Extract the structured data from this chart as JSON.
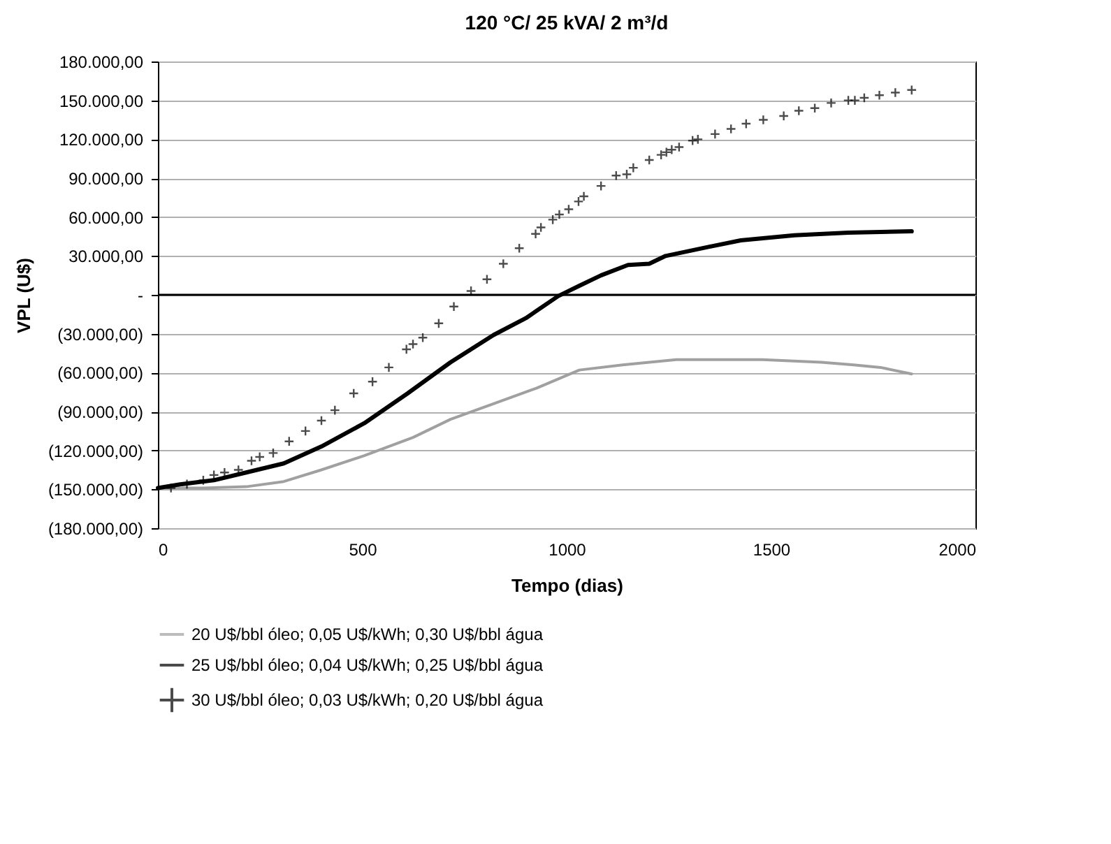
{
  "chart_data": {
    "type": "line",
    "title": "120 °C/ 25 kVA/ 2 m³/d",
    "xlabel": "Tempo (dias)",
    "ylabel": "VPL (U$)",
    "xlim": [
      0,
      2000
    ],
    "xticks": [
      0,
      500,
      1000,
      1500,
      2000
    ],
    "ylim": [
      -180000,
      180000
    ],
    "yticks": [
      {
        "value": 180000,
        "label": "180.000,00"
      },
      {
        "value": 150000,
        "label": "150.000,00"
      },
      {
        "value": 120000,
        "label": "120.000,00"
      },
      {
        "value": 90000,
        "label": "90.000,00"
      },
      {
        "value": 60000,
        "label": "60.000,00"
      },
      {
        "value": 30000,
        "label": "30.000,00"
      },
      {
        "value": 0,
        "label": "-"
      },
      {
        "value": -30000,
        "label": "(30.000,00)"
      },
      {
        "value": -60000,
        "label": "(60.000,00)"
      },
      {
        "value": -90000,
        "label": "(90.000,00)"
      },
      {
        "value": -120000,
        "label": "(120.000,00)"
      },
      {
        "value": -150000,
        "label": "(150.000,00)"
      },
      {
        "value": -180000,
        "label": "(180.000,00)"
      }
    ],
    "grid": "y",
    "legend": "bottom",
    "ref_lines": [
      {
        "axis": "y",
        "value": 0,
        "color": "#000000"
      }
    ],
    "series": [
      {
        "name": "20 U$/bbl óleo; 0,05 U$/kWh; 0,30 U$/bbl água",
        "color": "#a0a0a0",
        "x": [
          0,
          111,
          216,
          308,
          400,
          505,
          624,
          716,
          821,
          926,
          1031,
          1137,
          1268,
          1479,
          1623,
          1702,
          1768,
          1844
        ],
        "values": [
          -149000,
          -149000,
          -148000,
          -144000,
          -135000,
          -124000,
          -110000,
          -96000,
          -84000,
          -72000,
          -58000,
          -54000,
          -50000,
          -50000,
          -52000,
          -54000,
          -56000,
          -61000
        ]
      },
      {
        "name": "25 U$/bbl óleo; 0,04 U$/kWh; 0,25 U$/bbl água",
        "color": "#000000",
        "x": [
          0,
          58,
          137,
          216,
          308,
          400,
          505,
          611,
          716,
          821,
          900,
          979,
          1031,
          1084,
          1150,
          1202,
          1242,
          1347,
          1426,
          1557,
          1689,
          1844
        ],
        "values": [
          -149000,
          -146000,
          -143000,
          -137000,
          -130000,
          -117000,
          -99000,
          -76000,
          -52000,
          -31000,
          -18000,
          -1000,
          7000,
          15000,
          23000,
          24000,
          30000,
          37000,
          42000,
          46000,
          48000,
          49000
        ]
      },
      {
        "name": "30 U$/bbl óleo; 0,03 U$/kWh; 0,20 U$/bbl água",
        "type": "scatter",
        "marker": "cross",
        "color": "#000000",
        "x": [
          32,
          71,
          111,
          137,
          163,
          197,
          229,
          249,
          282,
          321,
          361,
          400,
          433,
          479,
          525,
          565,
          608,
          624,
          648,
          687,
          724,
          766,
          805,
          845,
          884,
          924,
          937,
          966,
          982,
          1005,
          1029,
          1042,
          1084,
          1121,
          1147,
          1163,
          1202,
          1231,
          1244,
          1257,
          1275,
          1308,
          1321,
          1363,
          1402,
          1439,
          1481,
          1531,
          1568,
          1607,
          1647,
          1689,
          1705,
          1728,
          1765,
          1804,
          1844
        ],
        "values": [
          -149000,
          -146000,
          -143000,
          -139000,
          -137000,
          -135000,
          -128000,
          -125000,
          -122000,
          -113000,
          -105000,
          -97000,
          -89000,
          -76000,
          -67000,
          -56000,
          -42000,
          -38000,
          -33000,
          -22000,
          -9000,
          3000,
          12000,
          24000,
          36000,
          47000,
          52000,
          58000,
          62000,
          66000,
          72000,
          76000,
          84000,
          92000,
          93000,
          98000,
          104000,
          108000,
          110000,
          112000,
          114000,
          119000,
          120000,
          124000,
          128000,
          132000,
          135000,
          138000,
          142000,
          144000,
          148000,
          150000,
          150000,
          152000,
          154000,
          156000,
          158000
        ]
      }
    ]
  }
}
